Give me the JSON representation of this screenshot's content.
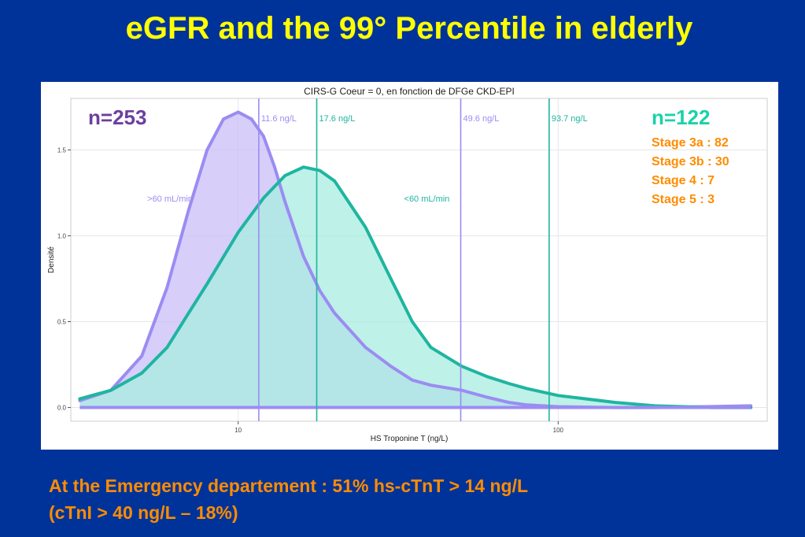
{
  "slide": {
    "title": "eGFR and the 99° Percentile in elderly",
    "footer_line1": "At the Emergency departement : 51% hs-cTnT > 14 ng/L",
    "footer_line2": "(cTnI > 40 ng/L – 18%)"
  },
  "annotations": {
    "n_left": "n=253",
    "n_right": "n=122",
    "stages": [
      "Stage 3a : 82",
      "Stage 3b : 30",
      "Stage 4 : 7",
      "Stage 5 : 3"
    ]
  },
  "colors": {
    "background": "#003399",
    "title": "#ffff00",
    "footer": "#ff8c00",
    "stages": "#ff8c00",
    "n_left": "#6b3fa0",
    "n_right": "#19d2a8",
    "series_purple": "#9b8cf2",
    "series_teal": "#1fb5a0"
  },
  "chart_data": {
    "type": "area",
    "title": "CIRS-G Coeur = 0, en fonction de DFGe CKD-EPI",
    "xlabel": "HS Troponine T (ng/L)",
    "ylabel": "Densité",
    "x_scale": "log",
    "xlim": [
      3,
      450
    ],
    "ylim": [
      -0.08,
      1.8
    ],
    "x_ticks": [
      10,
      100
    ],
    "y_ticks": [
      0.0,
      0.5,
      1.0,
      1.5
    ],
    "grid": true,
    "series": [
      {
        "name": ">60 mL/min",
        "color": "#9b8cf2",
        "fill": "#c9bdf8",
        "x": [
          3.2,
          4.0,
          5.0,
          6.0,
          7.0,
          8.0,
          9.0,
          10.0,
          11.0,
          12.0,
          13.0,
          14.0,
          16.0,
          18.0,
          20.0,
          25.0,
          30.0,
          35.0,
          40.0,
          50.0,
          60.0,
          70.0,
          80.0,
          100.0,
          150.0,
          200.0,
          400.0
        ],
        "y": [
          0.04,
          0.1,
          0.3,
          0.7,
          1.15,
          1.5,
          1.68,
          1.72,
          1.68,
          1.58,
          1.4,
          1.2,
          0.88,
          0.68,
          0.55,
          0.35,
          0.24,
          0.16,
          0.13,
          0.1,
          0.06,
          0.03,
          0.015,
          0.005,
          0.0,
          0.0,
          0.01
        ]
      },
      {
        "name": "<60 mL/min",
        "color": "#1fb5a0",
        "fill": "#a8ece0",
        "x": [
          3.2,
          4.0,
          5.0,
          6.0,
          7.0,
          8.0,
          10.0,
          12.0,
          14.0,
          16.0,
          18.0,
          20.0,
          25.0,
          30.0,
          35.0,
          40.0,
          50.0,
          60.0,
          70.0,
          80.0,
          100.0,
          150.0,
          200.0,
          300.0,
          400.0
        ],
        "y": [
          0.05,
          0.1,
          0.2,
          0.35,
          0.55,
          0.72,
          1.02,
          1.22,
          1.35,
          1.4,
          1.38,
          1.32,
          1.05,
          0.75,
          0.5,
          0.35,
          0.24,
          0.18,
          0.14,
          0.11,
          0.07,
          0.03,
          0.01,
          0.0,
          0.0
        ]
      }
    ],
    "vlines": [
      {
        "x": 11.6,
        "label": "11.6 ng/L",
        "color": "#9b8cf2"
      },
      {
        "x": 17.6,
        "label": "17.6 ng/L",
        "color": "#1fb5a0"
      },
      {
        "x": 49.6,
        "label": "49.6 ng/L",
        "color": "#9b8cf2"
      },
      {
        "x": 93.7,
        "label": "93.7 ng/L",
        "color": "#1fb5a0"
      }
    ],
    "region_labels": [
      {
        "text": ">60 mL/min",
        "x": 5.2,
        "y": 1.2,
        "color": "#9b8cf2"
      },
      {
        "text": "<60 mL/min",
        "x": 33.0,
        "y": 1.2,
        "color": "#1fb5a0"
      }
    ]
  }
}
